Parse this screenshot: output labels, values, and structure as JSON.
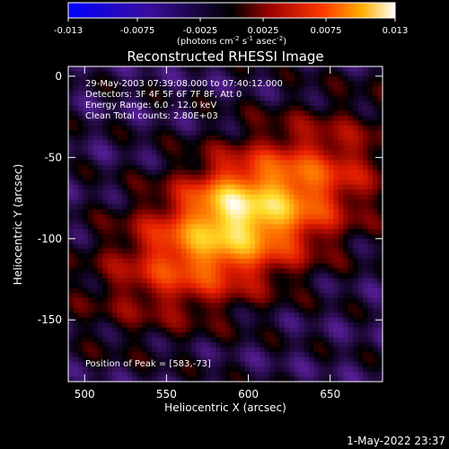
{
  "chart_data": {
    "type": "heatmap",
    "title": "Reconstructed RHESSI Image",
    "colorbar": {
      "ticks": [
        "-0.013",
        "-0.0075",
        "-0.0025",
        "0.0025",
        "0.0075",
        "0.013"
      ],
      "range": [
        -0.013,
        0.013
      ],
      "unit_label": "(photons cm",
      "unit_sup1": "-2",
      "unit_mid1": " s",
      "unit_sup2": "-1",
      "unit_mid2": " asec",
      "unit_sup3": "-2",
      "unit_end": ")"
    },
    "xlabel": "Heliocentric X (arcsec)",
    "ylabel": "Heliocentric Y (arcsec)",
    "xlim": [
      490,
      682
    ],
    "ylim": [
      -188,
      6
    ],
    "xticks": [
      500,
      550,
      600,
      650
    ],
    "yticks": [
      0,
      -50,
      -100,
      -150
    ],
    "annotations": [
      "29-May-2003 07:39:08.000 to 07:40:12.000",
      "Detectors: 3F 4F 5F 6F 7F 8F, Att 0",
      "Energy Range: 6.0 - 12.0 keV",
      "Clean    Total counts: 2.80E+03"
    ],
    "peak_label": "Position of Peak = [583,-73]",
    "peak": [
      583,
      -73
    ],
    "timestamp": "1-May-2022 23:37"
  }
}
